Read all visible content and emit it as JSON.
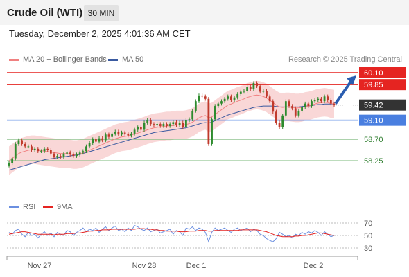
{
  "header": {
    "title": "Crude Oil (WTI)",
    "timeframe": "30 MIN",
    "datetime": "Tuesday, December 2, 2025 4:01:36 AM CET"
  },
  "legend": {
    "ma20_label": "MA 20 + Bollinger Bands",
    "ma50_label": "MA 50",
    "rsi_label": "RSI",
    "ma9_label": "9MA",
    "credit": "Research © 2025 Trading Central"
  },
  "colors": {
    "resistance": "#e52421",
    "support_current": "#4a7fe0",
    "support": "#7ab87a",
    "ma20": "#f08080",
    "ma50": "#3a5aa0",
    "band": "#f9d7d7",
    "bull": "#2e8b2e",
    "bear": "#c0392b",
    "rsi": "#6b8fe0",
    "rsi_ma": "#e52421",
    "arrow": "#2a5db0"
  },
  "chart_data": [
    {
      "type": "candlestick",
      "title": "Crude Oil (WTI)",
      "timeframe": "30 MIN",
      "x_labels": [
        "Nov 27",
        "Nov 28",
        "Dec 1",
        "Dec 2"
      ],
      "ylim": [
        57.95,
        60.2
      ],
      "last_price": 59.42,
      "levels": [
        {
          "value": 60.1,
          "label": "60.10",
          "kind": "resistance"
        },
        {
          "value": 59.85,
          "label": "59.85",
          "kind": "resistance"
        },
        {
          "value": 59.42,
          "label": "59.42",
          "kind": "current"
        },
        {
          "value": 59.1,
          "label": "59.10",
          "kind": "pivot"
        },
        {
          "value": 58.7,
          "label": "58.70",
          "kind": "support"
        },
        {
          "value": 58.25,
          "label": "58.25",
          "kind": "support"
        }
      ],
      "forecast_target": 60.1,
      "close": [
        58.2,
        58.3,
        58.6,
        58.68,
        58.6,
        58.55,
        58.55,
        58.48,
        58.5,
        58.45,
        58.45,
        58.5,
        58.48,
        58.4,
        58.32,
        58.35,
        58.32,
        58.4,
        58.42,
        58.38,
        58.35,
        58.38,
        58.42,
        58.45,
        58.55,
        58.62,
        58.7,
        58.65,
        58.72,
        58.68,
        58.8,
        58.75,
        58.82,
        58.86,
        58.8,
        58.84,
        58.82,
        58.78,
        58.82,
        58.9,
        58.95,
        58.9,
        59.05,
        59.1,
        59.02,
        59,
        59.02,
        58.98,
        59.02,
        58.98,
        59.02,
        59.06,
        59,
        59.05,
        58.95,
        59.1,
        59.12,
        59.3,
        59.5,
        59.62,
        59.6,
        59.55,
        58.6,
        59.12,
        59.4,
        59.45,
        59.5,
        59.55,
        59.6,
        59.52,
        59.58,
        59.65,
        59.7,
        59.72,
        59.8,
        59.75,
        59.88,
        59.82,
        59.7,
        59.72,
        59.6,
        59.5,
        59.28,
        59.05,
        58.95,
        59.2,
        59.5,
        59.4,
        59.35,
        59.2,
        59.3,
        59.38,
        59.45,
        59.4,
        59.5,
        59.52,
        59.55,
        59.5,
        59.6,
        59.52,
        59.45,
        59.42
      ],
      "ma20": [
        58.25,
        58.3,
        58.35,
        58.4,
        58.43,
        58.45,
        58.47,
        58.48,
        58.48,
        58.47,
        58.46,
        58.45,
        58.44,
        58.43,
        58.42,
        58.41,
        58.4,
        58.4,
        58.4,
        58.39,
        58.38,
        58.38,
        58.39,
        58.41,
        58.44,
        58.47,
        58.5,
        58.53,
        58.56,
        58.59,
        58.62,
        58.65,
        58.68,
        58.71,
        58.73,
        58.75,
        58.76,
        58.77,
        58.79,
        58.81,
        58.83,
        58.85,
        58.87,
        58.9,
        58.92,
        58.94,
        58.95,
        58.96,
        58.97,
        58.98,
        58.98,
        58.99,
        59,
        59,
        59,
        59.01,
        59.03,
        59.06,
        59.1,
        59.15,
        59.18,
        59.2,
        59.15,
        59.17,
        59.22,
        59.27,
        59.32,
        59.37,
        59.42,
        59.44,
        59.47,
        59.5,
        59.52,
        59.55,
        59.58,
        59.6,
        59.62,
        59.63,
        59.62,
        59.6,
        59.57,
        59.52,
        59.47,
        59.42,
        59.38,
        59.37,
        59.38,
        59.38,
        59.37,
        59.36,
        59.36,
        59.37,
        59.39,
        59.4,
        59.42,
        59.44,
        59.46,
        59.47,
        59.48,
        59.47,
        59.45,
        59.44
      ],
      "ma50": [
        58.05,
        58.07,
        58.09,
        58.11,
        58.13,
        58.15,
        58.17,
        58.19,
        58.21,
        58.23,
        58.25,
        58.27,
        58.28,
        58.29,
        58.3,
        58.31,
        58.32,
        58.33,
        58.34,
        58.35,
        58.36,
        58.37,
        58.38,
        58.4,
        58.42,
        58.44,
        58.46,
        58.48,
        58.5,
        58.52,
        58.54,
        58.56,
        58.58,
        58.6,
        58.62,
        58.64,
        58.66,
        58.68,
        58.7,
        58.72,
        58.74,
        58.76,
        58.78,
        58.8,
        58.82,
        58.84,
        58.85,
        58.86,
        58.87,
        58.88,
        58.89,
        58.9,
        58.91,
        58.92,
        58.93,
        58.94,
        58.96,
        58.98,
        59,
        59.02,
        59.04,
        59.05,
        59.04,
        59.06,
        59.09,
        59.12,
        59.15,
        59.18,
        59.21,
        59.23,
        59.25,
        59.27,
        59.29,
        59.31,
        59.33,
        59.35,
        59.37,
        59.38,
        59.39,
        59.4,
        59.4,
        59.4,
        59.4,
        59.39,
        59.38,
        59.38,
        59.38,
        59.38,
        59.38,
        59.38,
        59.38,
        59.39,
        59.4,
        59.4,
        59.41,
        59.42,
        59.43,
        59.43,
        59.44,
        59.44,
        59.44,
        59.44
      ],
      "band_width": 0.3
    },
    {
      "type": "line",
      "title": "RSI",
      "ylim": [
        20,
        80
      ],
      "y_ticks": [
        70,
        50,
        30
      ],
      "series": [
        {
          "name": "RSI",
          "values": [
            55,
            52,
            58,
            60,
            52,
            48,
            55,
            50,
            52,
            46,
            52,
            56,
            50,
            54,
            48,
            55,
            52,
            50,
            58,
            56,
            50,
            55,
            58,
            62,
            56,
            60,
            58,
            62,
            55,
            60,
            64,
            58,
            62,
            65,
            58,
            60,
            56,
            62,
            58,
            66,
            64,
            60,
            58,
            62,
            56,
            58,
            60,
            54,
            56,
            58,
            60,
            52,
            58,
            56,
            50,
            62,
            60,
            64,
            58,
            62,
            60,
            55,
            40,
            55,
            62,
            58,
            60,
            62,
            58,
            55,
            60,
            62,
            58,
            60,
            62,
            56,
            60,
            58,
            52,
            50,
            45,
            42,
            40,
            45,
            55,
            52,
            48,
            50,
            46,
            52,
            50,
            55,
            52,
            56,
            54,
            58,
            55,
            50,
            56,
            52,
            48,
            50
          ]
        },
        {
          "name": "9MA",
          "values": [
            52,
            53,
            54,
            55,
            56,
            56,
            55,
            54,
            53,
            52,
            52,
            52,
            52,
            52,
            51,
            52,
            52,
            52,
            53,
            53,
            53,
            54,
            54,
            55,
            56,
            57,
            57,
            58,
            58,
            59,
            59,
            59,
            60,
            60,
            60,
            60,
            60,
            60,
            60,
            60,
            61,
            61,
            61,
            60,
            60,
            59,
            59,
            58,
            58,
            57,
            57,
            57,
            57,
            56,
            56,
            56,
            57,
            57,
            57,
            58,
            58,
            58,
            57,
            57,
            58,
            58,
            58,
            58,
            58,
            58,
            58,
            58,
            59,
            59,
            59,
            59,
            59,
            59,
            58,
            57,
            56,
            54,
            52,
            50,
            49,
            48,
            48,
            48,
            48,
            49,
            49,
            50,
            50,
            51,
            52,
            53,
            54,
            54,
            53,
            52,
            51,
            50
          ]
        }
      ]
    }
  ]
}
